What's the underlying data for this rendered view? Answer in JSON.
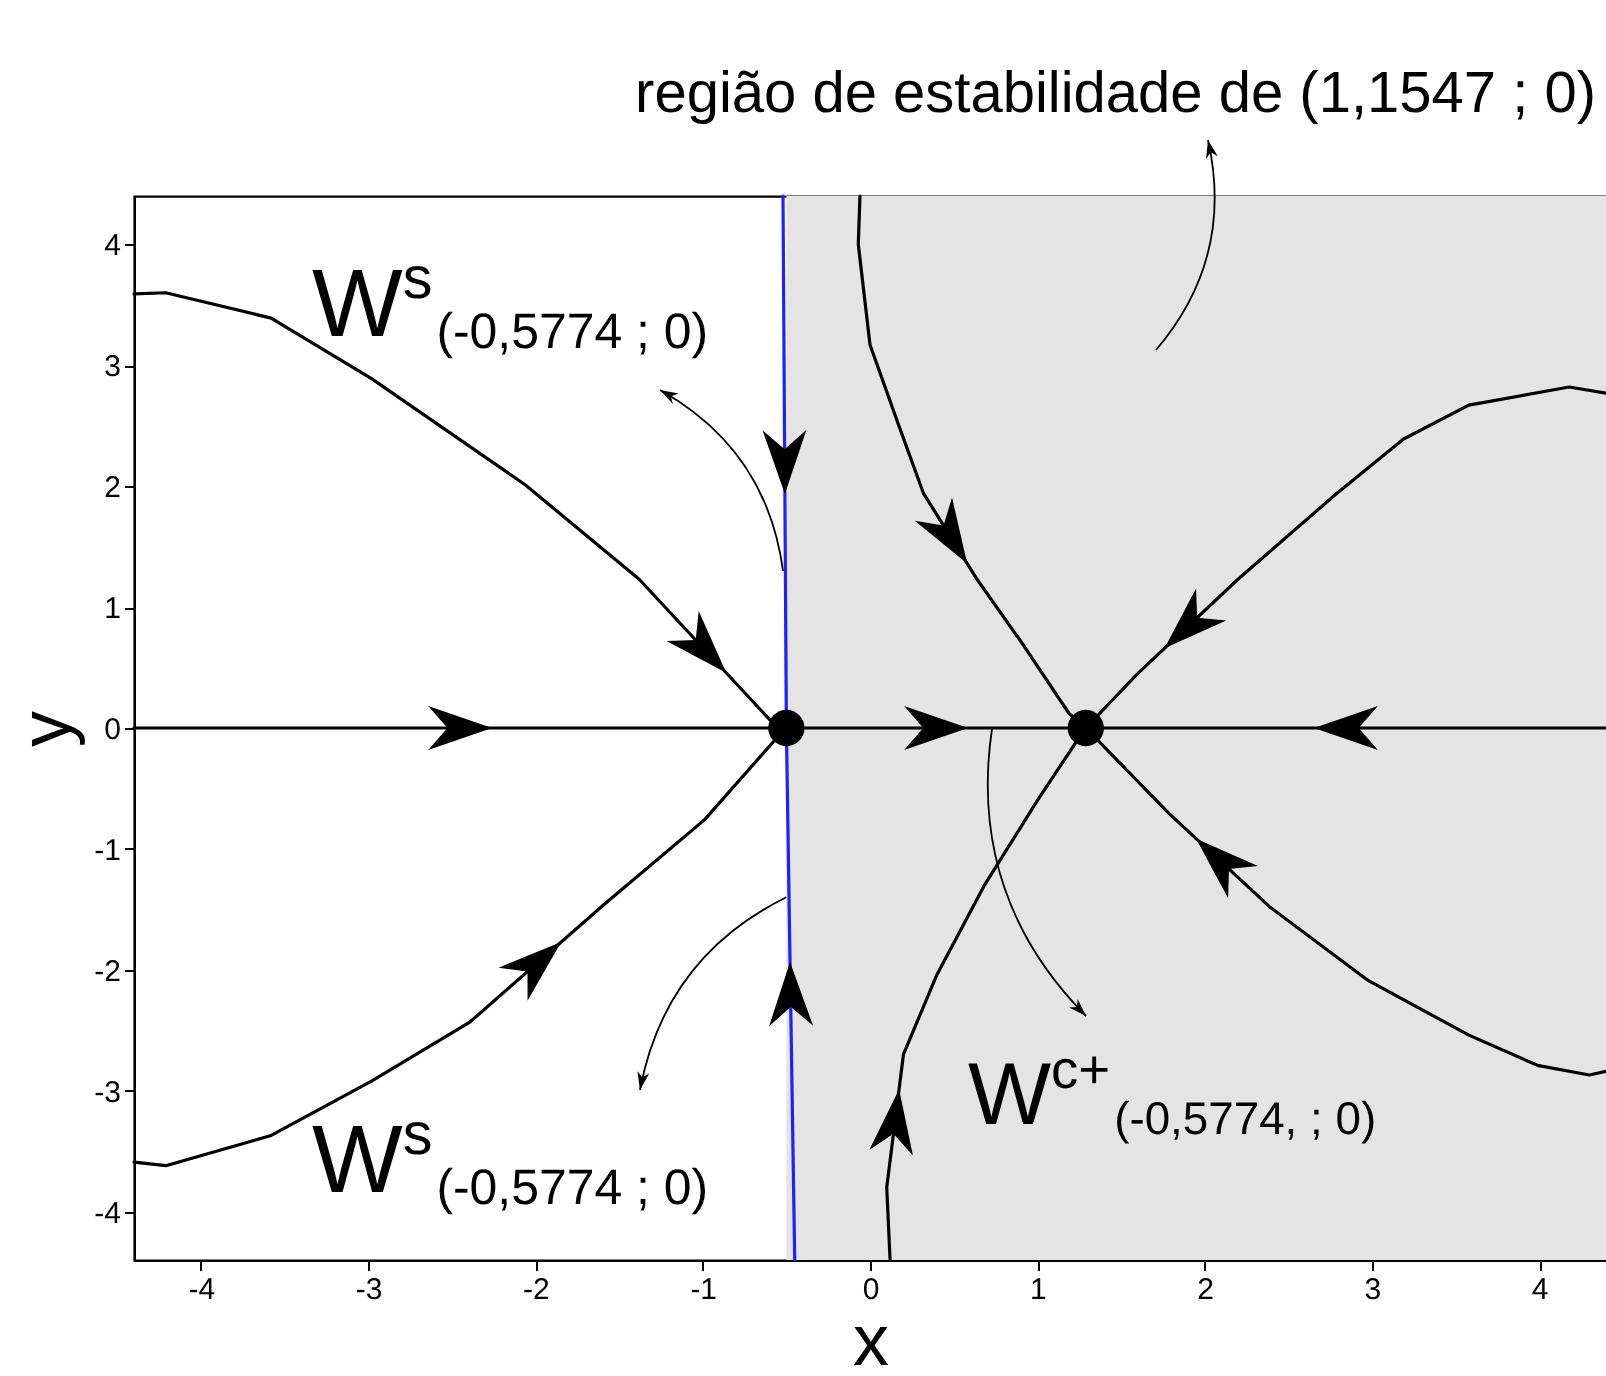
{
  "chart_data": {
    "type": "line",
    "xlabel": "x",
    "ylabel": "y",
    "xlim": [
      -4.4,
      4.4
    ],
    "ylim": [
      -4.4,
      4.4
    ],
    "xticks": [
      -4,
      -3,
      -2,
      -1,
      0,
      1,
      2,
      3,
      4
    ],
    "yticks": [
      -4,
      -3,
      -2,
      -1,
      0,
      1,
      2,
      3,
      4
    ],
    "bands": [
      {
        "axis": "x",
        "from": -0.5,
        "to": 4.4,
        "color": "#e4e4e4"
      }
    ],
    "annotations": [
      "região de estabilidade de (1,1547 ; 0)",
      {
        "text": "W$^{s}$$_{(-0,5774 ; 0)}$",
        "x": -0.52,
        "y": 1.3
      },
      {
        "text": "W$^{s}$$_{(-0,5774 ; 0)}$",
        "x": -0.5,
        "y": -1.4
      },
      {
        "text": "W$^{c+}$$_{(-0,5774, ; 0)}$",
        "x": 0.73,
        "y": 0
      }
    ],
    "series": [
      {
        "type": "line",
        "color": "#000000",
        "x": [
          -4.4,
          -4.21,
          -3.58,
          -2.98,
          -2.06,
          -1.38,
          -0.6,
          -0.5
        ],
        "values": [
          3.59,
          3.6,
          3.39,
          2.89,
          2.01,
          1.23,
          0.07,
          0
        ]
      },
      {
        "type": "line",
        "color": "#000000",
        "x": [
          -4.4,
          -4.21,
          -3.58,
          -2.98,
          -2.39,
          -1.59,
          -0.99,
          -0.55,
          -0.5
        ],
        "values": [
          -3.59,
          -3.62,
          -3.37,
          -2.92,
          -2.43,
          -1.46,
          -0.76,
          -0.07,
          0
        ]
      },
      {
        "type": "line",
        "color": "#000000",
        "x": [
          -4.4,
          -0.5
        ],
        "values": [
          0,
          0
        ]
      },
      {
        "type": "line",
        "color": "#000000",
        "x": [
          -0.5,
          1.29
        ],
        "values": [
          0,
          0
        ]
      },
      {
        "type": "line",
        "color": "#000000",
        "x": [
          4.4,
          1.29
        ],
        "values": [
          0,
          0
        ]
      },
      {
        "type": "line",
        "color": "#000000",
        "x": [
          -0.06,
          -0.07,
          0,
          0.17,
          0.32,
          0.64,
          0.92,
          1.19,
          1.29
        ],
        "values": [
          4.4,
          4,
          3.17,
          2.51,
          1.94,
          1.23,
          0.68,
          0.12,
          0
        ]
      },
      {
        "type": "line",
        "color": "#000000",
        "x": [
          4.4,
          4.18,
          3.58,
          3.19,
          2.79,
          2.2,
          1.6,
          1.29
        ],
        "values": [
          2.77,
          2.82,
          2.67,
          2.39,
          1.94,
          1.23,
          0.45,
          0
        ]
      },
      {
        "type": "line",
        "color": "#000000",
        "x": [
          4.4,
          4.3,
          3.99,
          3.58,
          2.98,
          2.39,
          1.79,
          1.29
        ],
        "values": [
          -2.84,
          -2.87,
          -2.79,
          -2.54,
          -2.09,
          -1.48,
          -0.71,
          0
        ]
      },
      {
        "type": "line",
        "color": "#000000",
        "x": [
          0.12,
          0.1,
          0.2,
          0.4,
          0.68,
          1.0,
          1.24,
          1.29
        ],
        "values": [
          -4.4,
          -3.8,
          -2.7,
          -2.04,
          -1.31,
          -0.6,
          -0.1,
          0
        ]
      },
      {
        "type": "line",
        "color": "#1f1fff",
        "x": [
          -0.52,
          -0.5
        ],
        "values": [
          4.4,
          0
        ]
      },
      {
        "type": "line",
        "color": "#1f1fff",
        "x": [
          -0.45,
          -0.5
        ],
        "values": [
          -4.4,
          0
        ]
      },
      {
        "type": "scatter",
        "color": "#000000",
        "x": [
          -0.5,
          1.29
        ],
        "values": [
          0,
          0
        ]
      }
    ]
  }
}
